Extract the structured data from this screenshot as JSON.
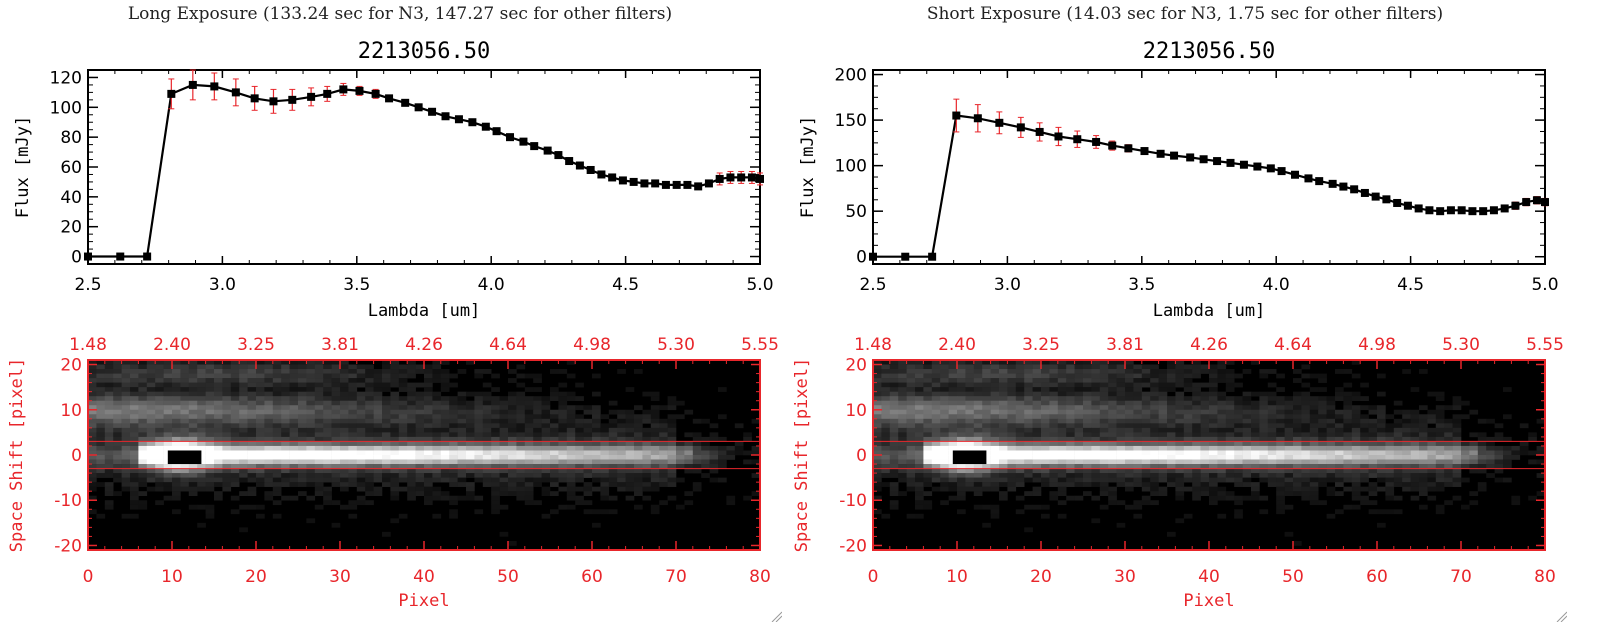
{
  "panels": [
    {
      "title": "Long Exposure (133.24 sec for N3, 147.27 sec for other filters)"
    },
    {
      "title": "Short Exposure (14.03 sec for N3, 1.75 sec for other filters)"
    }
  ],
  "colors": {
    "axis": "#000000",
    "errorbar": "#e8262b",
    "image_axis": "#e8262b",
    "marker": "#000000"
  },
  "icons": {
    "resize": "resize-grip-icon"
  },
  "chart_data": [
    {
      "type": "line",
      "title": "2213056.50",
      "xlabel": "Lambda [um]",
      "ylabel": "Flux [mJy]",
      "xlim": [
        2.5,
        5.0
      ],
      "ylim": [
        -5,
        125
      ],
      "xticks": [
        "2.5",
        "3.0",
        "3.5",
        "4.0",
        "4.5",
        "5.0"
      ],
      "yticks": [
        "0",
        "20",
        "40",
        "60",
        "80",
        "100",
        "120"
      ],
      "series": [
        {
          "x": [
            2.5,
            2.62,
            2.72,
            2.81,
            2.89,
            2.97,
            3.05,
            3.12,
            3.19,
            3.26,
            3.33,
            3.39,
            3.45,
            3.51,
            3.57,
            3.62,
            3.68,
            3.73,
            3.78,
            3.83,
            3.88,
            3.93,
            3.98,
            4.02,
            4.07,
            4.12,
            4.16,
            4.21,
            4.25,
            4.29,
            4.33,
            4.37,
            4.41,
            4.45,
            4.49,
            4.53,
            4.57,
            4.61,
            4.65,
            4.69,
            4.73,
            4.77,
            4.81,
            4.85,
            4.89,
            4.93,
            4.97,
            5.0
          ],
          "y": [
            0,
            0,
            0,
            109,
            115,
            114,
            110,
            106,
            104,
            105,
            107,
            109,
            112,
            111,
            109,
            106,
            103,
            100,
            97,
            94,
            92,
            90,
            87,
            84,
            80,
            77,
            74,
            71,
            68,
            64,
            61,
            58,
            55,
            53,
            51,
            50,
            49,
            49,
            48,
            48,
            48,
            47,
            49,
            52,
            53,
            53,
            53,
            52
          ],
          "err": [
            0,
            0,
            0,
            10,
            10,
            9,
            9,
            8,
            8,
            7,
            6,
            5,
            4,
            3,
            3,
            2,
            2,
            2,
            2,
            2,
            2,
            2,
            2,
            2,
            2,
            2,
            2,
            2,
            2,
            2,
            2,
            2,
            2,
            2,
            2,
            2,
            2,
            2,
            2,
            2,
            2,
            2,
            2,
            4,
            4,
            4,
            4,
            4
          ]
        }
      ]
    },
    {
      "type": "line",
      "title": "2213056.50",
      "xlabel": "Lambda [um]",
      "ylabel": "Flux [mJy]",
      "xlim": [
        2.5,
        5.0
      ],
      "ylim": [
        -8,
        205
      ],
      "xticks": [
        "2.5",
        "3.0",
        "3.5",
        "4.0",
        "4.5",
        "5.0"
      ],
      "yticks": [
        "0",
        "50",
        "100",
        "150",
        "200"
      ],
      "series": [
        {
          "x": [
            2.5,
            2.62,
            2.72,
            2.81,
            2.89,
            2.97,
            3.05,
            3.12,
            3.19,
            3.26,
            3.33,
            3.39,
            3.45,
            3.51,
            3.57,
            3.62,
            3.68,
            3.73,
            3.78,
            3.83,
            3.88,
            3.93,
            3.98,
            4.02,
            4.07,
            4.12,
            4.16,
            4.21,
            4.25,
            4.29,
            4.33,
            4.37,
            4.41,
            4.45,
            4.49,
            4.53,
            4.57,
            4.61,
            4.65,
            4.69,
            4.73,
            4.77,
            4.81,
            4.85,
            4.89,
            4.93,
            4.97,
            5.0
          ],
          "y": [
            0,
            0,
            0,
            155,
            152,
            147,
            142,
            137,
            132,
            129,
            126,
            122,
            119,
            116,
            113,
            111,
            109,
            107,
            105,
            103,
            101,
            99,
            97,
            94,
            90,
            86,
            83,
            80,
            77,
            74,
            70,
            66,
            63,
            59,
            56,
            53,
            51,
            50,
            51,
            51,
            50,
            50,
            51,
            53,
            56,
            60,
            62,
            60
          ],
          "err": [
            0,
            0,
            0,
            18,
            15,
            12,
            11,
            10,
            10,
            9,
            7,
            5,
            4,
            3,
            3,
            2,
            2,
            2,
            2,
            2,
            2,
            2,
            2,
            2,
            2,
            2,
            2,
            2,
            2,
            2,
            2,
            2,
            2,
            2,
            2,
            2,
            2,
            2,
            2,
            2,
            2,
            2,
            2,
            3,
            4,
            4,
            4,
            4
          ]
        }
      ]
    },
    {
      "type": "heatmap",
      "xlabel": "Pixel",
      "ylabel": "Space Shift [pixel]",
      "xlim": [
        0,
        80
      ],
      "ylim": [
        -21,
        21
      ],
      "xticks": [
        "0",
        "10",
        "20",
        "30",
        "40",
        "50",
        "60",
        "70",
        "80"
      ],
      "yticks": [
        "-20",
        "-10",
        "0",
        "10",
        "20"
      ],
      "top_ticks": [
        "1.48",
        "2.40",
        "3.25",
        "3.81",
        "4.26",
        "4.64",
        "4.98",
        "5.30",
        "5.55"
      ],
      "extraction_band": [
        -3,
        3
      ]
    },
    {
      "type": "heatmap",
      "xlabel": "Pixel",
      "ylabel": "Space Shift [pixel]",
      "xlim": [
        0,
        80
      ],
      "ylim": [
        -21,
        21
      ],
      "xticks": [
        "0",
        "10",
        "20",
        "30",
        "40",
        "50",
        "60",
        "70",
        "80"
      ],
      "yticks": [
        "-20",
        "-10",
        "0",
        "10",
        "20"
      ],
      "top_ticks": [
        "1.48",
        "2.40",
        "3.25",
        "3.81",
        "4.26",
        "4.64",
        "4.98",
        "5.30",
        "5.55"
      ],
      "extraction_band": [
        -3,
        3
      ]
    }
  ]
}
